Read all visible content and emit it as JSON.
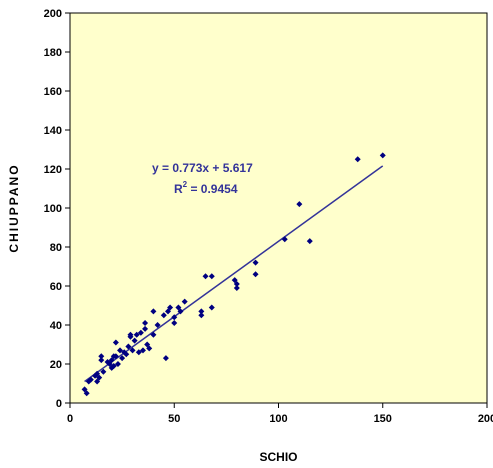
{
  "chart_data": {
    "type": "scatter",
    "xlabel": "SCHIO",
    "ylabel": "CHIUPPANO",
    "xlim": [
      0,
      200
    ],
    "ylim": [
      0,
      200
    ],
    "x_ticks": [
      "0",
      "50",
      "100",
      "150",
      "200"
    ],
    "y_ticks": [
      "0",
      "20",
      "40",
      "60",
      "80",
      "100",
      "120",
      "140",
      "160",
      "180",
      "200"
    ],
    "grid": false,
    "plot_background": "#FFFFCC",
    "marker_color": "#000080",
    "trendline": {
      "type": "linear",
      "slope": 0.773,
      "intercept": 5.617,
      "x_range": [
        7,
        150
      ],
      "color": "#333399",
      "equation_label": "y = 0.773x + 5.617",
      "r2_prefix": "R",
      "r2_sup": "2",
      "r2_value": " = 0.9454"
    },
    "points": [
      [
        7,
        7
      ],
      [
        8,
        5
      ],
      [
        9,
        11
      ],
      [
        10,
        12
      ],
      [
        12,
        14
      ],
      [
        13,
        11
      ],
      [
        13,
        15
      ],
      [
        14,
        13
      ],
      [
        15,
        22
      ],
      [
        15,
        24
      ],
      [
        16,
        16
      ],
      [
        18,
        21
      ],
      [
        19,
        20
      ],
      [
        20,
        18
      ],
      [
        20,
        22
      ],
      [
        21,
        19
      ],
      [
        21,
        24
      ],
      [
        22,
        24
      ],
      [
        22,
        31
      ],
      [
        23,
        20
      ],
      [
        24,
        27
      ],
      [
        25,
        23
      ],
      [
        26,
        26
      ],
      [
        27,
        25
      ],
      [
        28,
        29
      ],
      [
        29,
        34
      ],
      [
        29,
        35
      ],
      [
        30,
        27
      ],
      [
        31,
        32
      ],
      [
        32,
        35
      ],
      [
        33,
        26
      ],
      [
        34,
        36
      ],
      [
        35,
        27
      ],
      [
        36,
        38
      ],
      [
        36,
        41
      ],
      [
        37,
        30
      ],
      [
        38,
        28
      ],
      [
        40,
        35
      ],
      [
        40,
        47
      ],
      [
        42,
        40
      ],
      [
        45,
        45
      ],
      [
        46,
        23
      ],
      [
        47,
        47
      ],
      [
        48,
        49
      ],
      [
        50,
        41
      ],
      [
        50,
        44
      ],
      [
        52,
        49
      ],
      [
        53,
        47
      ],
      [
        55,
        52
      ],
      [
        63,
        45
      ],
      [
        63,
        47
      ],
      [
        65,
        65
      ],
      [
        68,
        49
      ],
      [
        68,
        65
      ],
      [
        79,
        63
      ],
      [
        80,
        61
      ],
      [
        80,
        59
      ],
      [
        89,
        72
      ],
      [
        89,
        66
      ],
      [
        103,
        84
      ],
      [
        110,
        102
      ],
      [
        115,
        83
      ],
      [
        138,
        125
      ],
      [
        150,
        127
      ]
    ]
  }
}
